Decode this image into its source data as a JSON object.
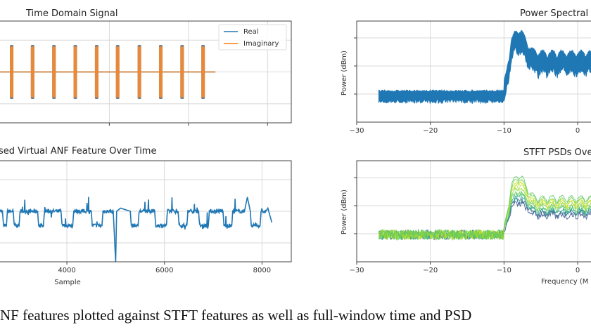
{
  "chart_data": [
    {
      "type": "line",
      "panel": "top-left",
      "title": "Time Domain Signal",
      "xlabel": "",
      "ylabel": "",
      "xlim": [
        1200,
        8600
      ],
      "ylim": [
        -1.6,
        1.6
      ],
      "xticks": [
        4000,
        6000,
        8000
      ],
      "xtick_labels": [
        "",
        "",
        ""
      ],
      "grid": true,
      "legend": {
        "placement": "top-right",
        "entries": [
          "Real",
          "Imaginary"
        ]
      },
      "series": [
        {
          "name": "Real",
          "color": "#1f77b4",
          "description_values": {
            "baseline": 0,
            "burst_amplitude": 0.85
          }
        },
        {
          "name": "Imaginary",
          "color": "#ff7f0e",
          "description_values": {
            "baseline": 0,
            "burst_amplitude": 0.8
          }
        }
      ],
      "burst_centers": [
        1530,
        2060,
        2600,
        3140,
        3680,
        4210,
        4760,
        5300,
        5840,
        6370
      ],
      "signal_end": 6680
    },
    {
      "type": "line",
      "panel": "bottom-left",
      "title": "sed Virtual ANF Feature Over Time",
      "xlabel": "Sample",
      "ylabel": "",
      "xlim": [
        2600,
        8600
      ],
      "ylim": [
        -1.6,
        1.6
      ],
      "xticks": [
        4000,
        6000,
        8000
      ],
      "xtick_labels": [
        "4000",
        "6000",
        "8000"
      ],
      "grid": true,
      "series": [
        {
          "name": "ANF",
          "color": "#1f77b4"
        }
      ],
      "levels": {
        "high": 0.0,
        "low": -0.45
      },
      "segments": [
        [
          2600,
          0.0
        ],
        [
          2680,
          0.0
        ],
        [
          2700,
          -0.45
        ],
        [
          2760,
          -0.45
        ],
        [
          2780,
          0.0
        ],
        [
          2900,
          0.0
        ],
        [
          2920,
          -0.45
        ],
        [
          3020,
          -0.45
        ],
        [
          3040,
          0.0
        ],
        [
          3400,
          0.0
        ],
        [
          3420,
          -0.45
        ],
        [
          3520,
          -0.45
        ],
        [
          3540,
          0.0
        ],
        [
          3880,
          0.0
        ],
        [
          3900,
          -0.45
        ],
        [
          4120,
          -0.45
        ],
        [
          4140,
          0.0
        ],
        [
          4500,
          0.0
        ],
        [
          4520,
          -0.45
        ],
        [
          4720,
          -0.45
        ],
        [
          4740,
          0.0
        ],
        [
          4950,
          0.0
        ],
        [
          5000,
          -1.6
        ],
        [
          5020,
          0.0
        ],
        [
          5100,
          0.1
        ],
        [
          5300,
          0.0
        ],
        [
          5320,
          -0.45
        ],
        [
          5460,
          -0.45
        ],
        [
          5480,
          0.0
        ],
        [
          5800,
          0.0
        ],
        [
          5820,
          -0.45
        ],
        [
          6040,
          -0.45
        ],
        [
          6060,
          0.0
        ],
        [
          6280,
          0.0
        ],
        [
          6300,
          -0.45
        ],
        [
          6460,
          -0.45
        ],
        [
          6480,
          0.0
        ],
        [
          6700,
          0.0
        ],
        [
          6720,
          -0.45
        ],
        [
          6900,
          -0.45
        ],
        [
          6920,
          0.0
        ],
        [
          7200,
          0.0
        ],
        [
          7220,
          -0.45
        ],
        [
          7380,
          -0.45
        ],
        [
          7400,
          0.0
        ],
        [
          7640,
          0.0
        ],
        [
          7700,
          0.45
        ],
        [
          7760,
          0.0
        ],
        [
          7780,
          -0.45
        ],
        [
          7960,
          -0.45
        ],
        [
          7980,
          0.0
        ],
        [
          8080,
          0.0
        ],
        [
          8120,
          0.1
        ],
        [
          8200,
          -0.35
        ]
      ]
    },
    {
      "type": "line",
      "panel": "top-right",
      "title": "Power Spectral",
      "xlabel": "",
      "ylabel": "Power (dBm)",
      "xlim": [
        -30,
        2
      ],
      "ylim": [
        -1.0,
        2.6
      ],
      "xticks": [
        -30,
        -20,
        -10,
        0
      ],
      "xtick_labels": [
        "−30",
        "−20",
        "−10",
        "0"
      ],
      "grid": true,
      "series": [
        {
          "name": "PSD",
          "color": "#1f77b4"
        }
      ],
      "noise_floor": {
        "from": -27,
        "to": -10,
        "level": 0,
        "band": 0.3
      },
      "signal": {
        "from": -10,
        "to": 2,
        "peak_at": -8,
        "peak": 2.0,
        "level": 1.2,
        "band": 0.6
      }
    },
    {
      "type": "line",
      "panel": "bottom-right",
      "title": "STFT PSDs Ove",
      "xlabel": "Frequency (M",
      "ylabel": "Power (dBm)",
      "xlim": [
        -30,
        2
      ],
      "ylim": [
        -1.0,
        2.6
      ],
      "xticks": [
        -30,
        -20,
        -10,
        0
      ],
      "xtick_labels": [
        "−30",
        "−20",
        "−10",
        "0"
      ],
      "grid": true,
      "series_count": 10,
      "colormap": [
        "#3b528b",
        "#31688e",
        "#21918c",
        "#35b779",
        "#6ece58",
        "#90d743",
        "#b5de2b",
        "#c8e020",
        "#7ad151",
        "#5ec962"
      ]
    }
  ],
  "caption": {
    "text": "NF features plotted against STFT features as well as full-window time and PSD"
  }
}
